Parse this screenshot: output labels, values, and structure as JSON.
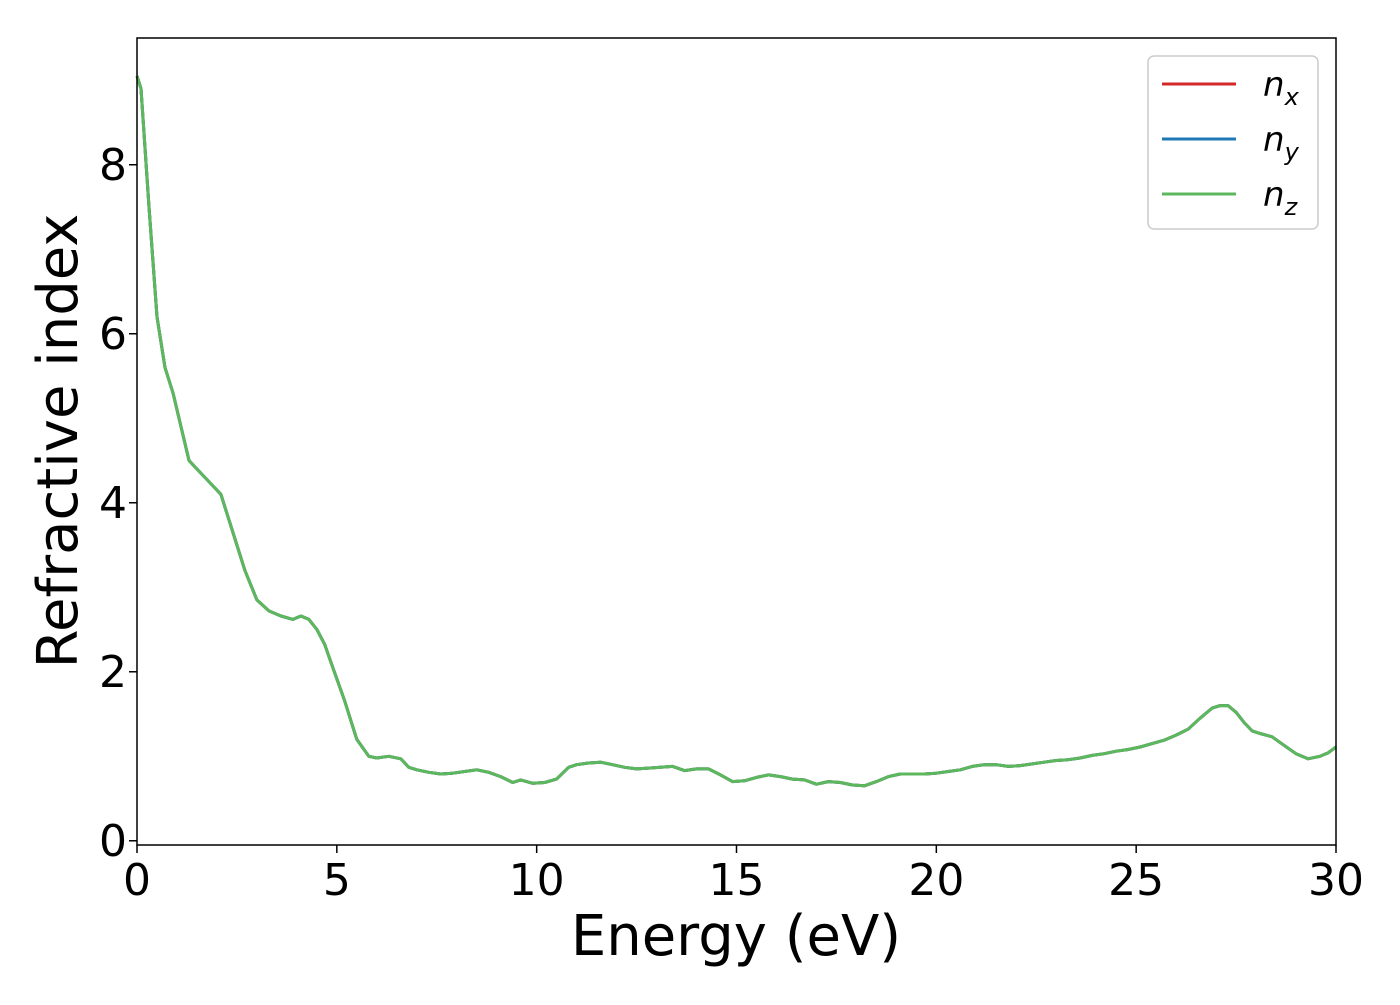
{
  "chart_data": {
    "type": "line",
    "xlabel": "Energy (eV)",
    "ylabel": "Refractive index",
    "xlim": [
      0,
      30
    ],
    "ylim": [
      -0.05,
      9.5
    ],
    "xticks": [
      0,
      5,
      10,
      15,
      20,
      25,
      30
    ],
    "yticks": [
      0,
      2,
      4,
      6,
      8
    ],
    "grid": false,
    "legend": {
      "placement": "top-right",
      "entries": [
        {
          "base": "n",
          "sub": "x"
        },
        {
          "base": "n",
          "sub": "y"
        },
        {
          "base": "n",
          "sub": "z"
        }
      ]
    },
    "x": [
      0,
      0.1,
      0.3,
      0.5,
      0.7,
      0.9,
      1.1,
      1.3,
      1.5,
      1.7,
      1.9,
      2.1,
      2.3,
      2.5,
      2.7,
      3.0,
      3.3,
      3.6,
      3.9,
      4.1,
      4.3,
      4.5,
      4.7,
      4.9,
      5.2,
      5.5,
      5.8,
      6.0,
      6.3,
      6.6,
      6.8,
      7.0,
      7.3,
      7.6,
      7.9,
      8.2,
      8.5,
      8.8,
      9.1,
      9.4,
      9.6,
      9.9,
      10.2,
      10.5,
      10.8,
      11.0,
      11.3,
      11.6,
      11.9,
      12.2,
      12.5,
      12.8,
      13.1,
      13.4,
      13.7,
      14.0,
      14.3,
      14.6,
      14.9,
      15.2,
      15.5,
      15.8,
      16.1,
      16.4,
      16.7,
      17.0,
      17.3,
      17.6,
      17.9,
      18.2,
      18.5,
      18.8,
      19.1,
      19.4,
      19.7,
      20.0,
      20.3,
      20.6,
      20.9,
      21.2,
      21.5,
      21.8,
      22.1,
      22.4,
      22.7,
      23.0,
      23.3,
      23.6,
      23.9,
      24.2,
      24.5,
      24.8,
      25.1,
      25.4,
      25.7,
      26.0,
      26.3,
      26.6,
      26.9,
      27.1,
      27.3,
      27.5,
      27.7,
      27.9,
      28.1,
      28.4,
      28.7,
      29.0,
      29.3,
      29.6,
      29.8,
      30.0
    ],
    "series": [
      {
        "name": "n_x",
        "color": "#d62728",
        "values": [
          9.05,
          8.9,
          7.5,
          6.2,
          5.6,
          5.3,
          4.9,
          4.5,
          4.4,
          4.3,
          4.2,
          4.1,
          3.8,
          3.5,
          3.2,
          2.85,
          2.72,
          2.66,
          2.62,
          2.66,
          2.62,
          2.5,
          2.32,
          2.05,
          1.65,
          1.2,
          1.0,
          0.98,
          1.0,
          0.97,
          0.87,
          0.84,
          0.81,
          0.79,
          0.8,
          0.82,
          0.84,
          0.81,
          0.76,
          0.69,
          0.72,
          0.68,
          0.69,
          0.73,
          0.87,
          0.9,
          0.92,
          0.93,
          0.9,
          0.87,
          0.85,
          0.86,
          0.87,
          0.88,
          0.83,
          0.85,
          0.85,
          0.78,
          0.7,
          0.71,
          0.75,
          0.78,
          0.76,
          0.73,
          0.72,
          0.67,
          0.7,
          0.69,
          0.66,
          0.65,
          0.7,
          0.76,
          0.79,
          0.79,
          0.79,
          0.8,
          0.82,
          0.84,
          0.88,
          0.9,
          0.9,
          0.88,
          0.89,
          0.91,
          0.93,
          0.95,
          0.96,
          0.98,
          1.01,
          1.03,
          1.06,
          1.08,
          1.11,
          1.15,
          1.19,
          1.25,
          1.32,
          1.45,
          1.57,
          1.6,
          1.6,
          1.52,
          1.4,
          1.3,
          1.27,
          1.23,
          1.13,
          1.03,
          0.97,
          1.0,
          1.04,
          1.11
        ]
      },
      {
        "name": "n_y",
        "color": "#1f77b4",
        "values": [
          9.05,
          8.9,
          7.5,
          6.2,
          5.6,
          5.3,
          4.9,
          4.5,
          4.4,
          4.3,
          4.2,
          4.1,
          3.8,
          3.5,
          3.2,
          2.85,
          2.72,
          2.66,
          2.62,
          2.66,
          2.62,
          2.5,
          2.32,
          2.05,
          1.65,
          1.2,
          1.0,
          0.98,
          1.0,
          0.97,
          0.87,
          0.84,
          0.81,
          0.79,
          0.8,
          0.82,
          0.84,
          0.81,
          0.76,
          0.69,
          0.72,
          0.68,
          0.69,
          0.73,
          0.87,
          0.9,
          0.92,
          0.93,
          0.9,
          0.87,
          0.85,
          0.86,
          0.87,
          0.88,
          0.83,
          0.85,
          0.85,
          0.78,
          0.7,
          0.71,
          0.75,
          0.78,
          0.76,
          0.73,
          0.72,
          0.67,
          0.7,
          0.69,
          0.66,
          0.65,
          0.7,
          0.76,
          0.79,
          0.79,
          0.79,
          0.8,
          0.82,
          0.84,
          0.88,
          0.9,
          0.9,
          0.88,
          0.89,
          0.91,
          0.93,
          0.95,
          0.96,
          0.98,
          1.01,
          1.03,
          1.06,
          1.08,
          1.11,
          1.15,
          1.19,
          1.25,
          1.32,
          1.45,
          1.57,
          1.6,
          1.6,
          1.52,
          1.4,
          1.3,
          1.27,
          1.23,
          1.13,
          1.03,
          0.97,
          1.0,
          1.04,
          1.11
        ]
      },
      {
        "name": "n_z",
        "color": "#5cb85c",
        "values": [
          9.05,
          8.9,
          7.5,
          6.2,
          5.6,
          5.3,
          4.9,
          4.5,
          4.4,
          4.3,
          4.2,
          4.1,
          3.8,
          3.5,
          3.2,
          2.85,
          2.72,
          2.66,
          2.62,
          2.66,
          2.62,
          2.5,
          2.32,
          2.05,
          1.65,
          1.2,
          1.0,
          0.98,
          1.0,
          0.97,
          0.87,
          0.84,
          0.81,
          0.79,
          0.8,
          0.82,
          0.84,
          0.81,
          0.76,
          0.69,
          0.72,
          0.68,
          0.69,
          0.73,
          0.87,
          0.9,
          0.92,
          0.93,
          0.9,
          0.87,
          0.85,
          0.86,
          0.87,
          0.88,
          0.83,
          0.85,
          0.85,
          0.78,
          0.7,
          0.71,
          0.75,
          0.78,
          0.76,
          0.73,
          0.72,
          0.67,
          0.7,
          0.69,
          0.66,
          0.65,
          0.7,
          0.76,
          0.79,
          0.79,
          0.79,
          0.8,
          0.82,
          0.84,
          0.88,
          0.9,
          0.9,
          0.88,
          0.89,
          0.91,
          0.93,
          0.95,
          0.96,
          0.98,
          1.01,
          1.03,
          1.06,
          1.08,
          1.11,
          1.15,
          1.19,
          1.25,
          1.32,
          1.45,
          1.57,
          1.6,
          1.6,
          1.52,
          1.4,
          1.3,
          1.27,
          1.23,
          1.13,
          1.03,
          0.97,
          1.0,
          1.04,
          1.11
        ]
      }
    ]
  }
}
